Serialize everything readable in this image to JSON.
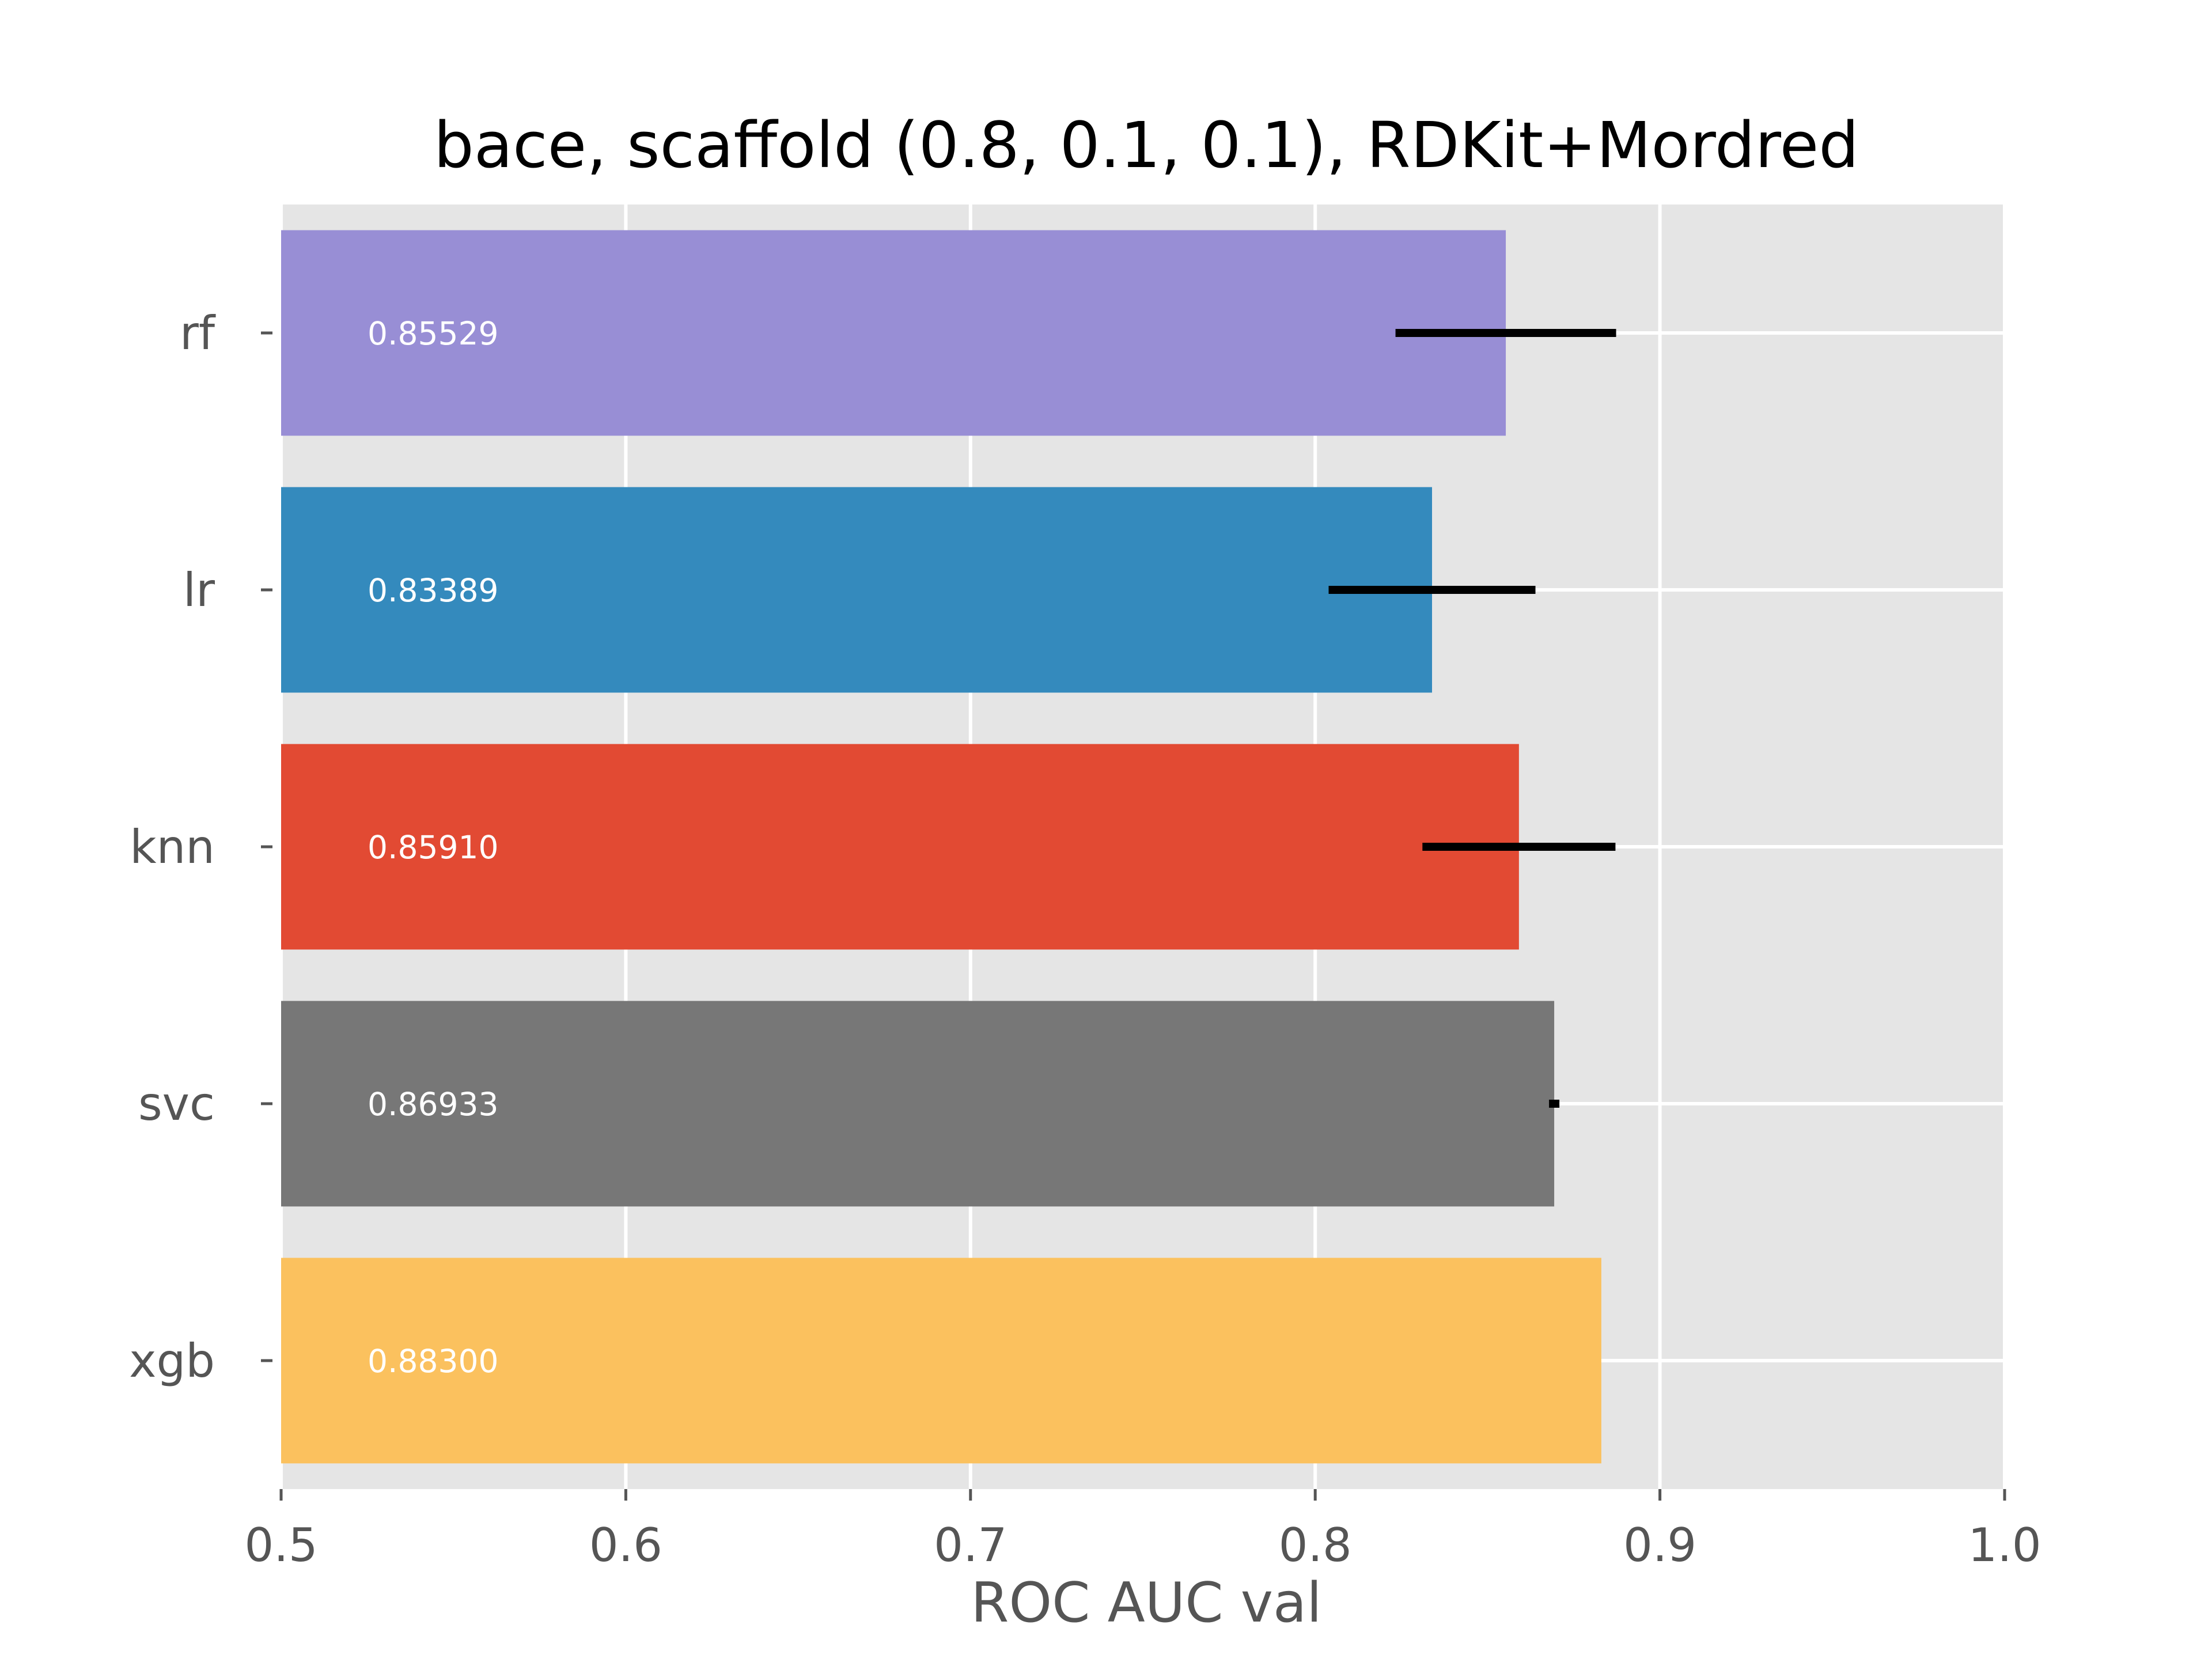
{
  "chart_data": {
    "type": "bar",
    "orientation": "horizontal",
    "title": "bace, scaffold (0.8, 0.1, 0.1), RDKit+Mordred",
    "xlabel": "ROC AUC val",
    "ylabel": "",
    "xlim": [
      0.5,
      1.0
    ],
    "xticks": [
      0.5,
      0.6,
      0.7,
      0.8,
      0.9,
      1.0
    ],
    "xtick_labels": [
      "0.5",
      "0.6",
      "0.7",
      "0.8",
      "0.9",
      "1.0"
    ],
    "grid": true,
    "categories": [
      "rf",
      "lr",
      "knn",
      "svc",
      "xgb"
    ],
    "values": [
      0.85529,
      0.83389,
      0.8591,
      0.86933,
      0.883
    ],
    "value_labels": [
      "0.85529",
      "0.83389",
      "0.85910",
      "0.86933",
      "0.88300"
    ],
    "errors": [
      0.032,
      0.03,
      0.028,
      0.001,
      0.0
    ],
    "colors": [
      "#988ED5",
      "#348ABD",
      "#E24A33",
      "#777777",
      "#FBC15E"
    ],
    "background_color": "#E5E5E5",
    "grid_color": "#FFFFFF",
    "error_color": "#000000"
  }
}
